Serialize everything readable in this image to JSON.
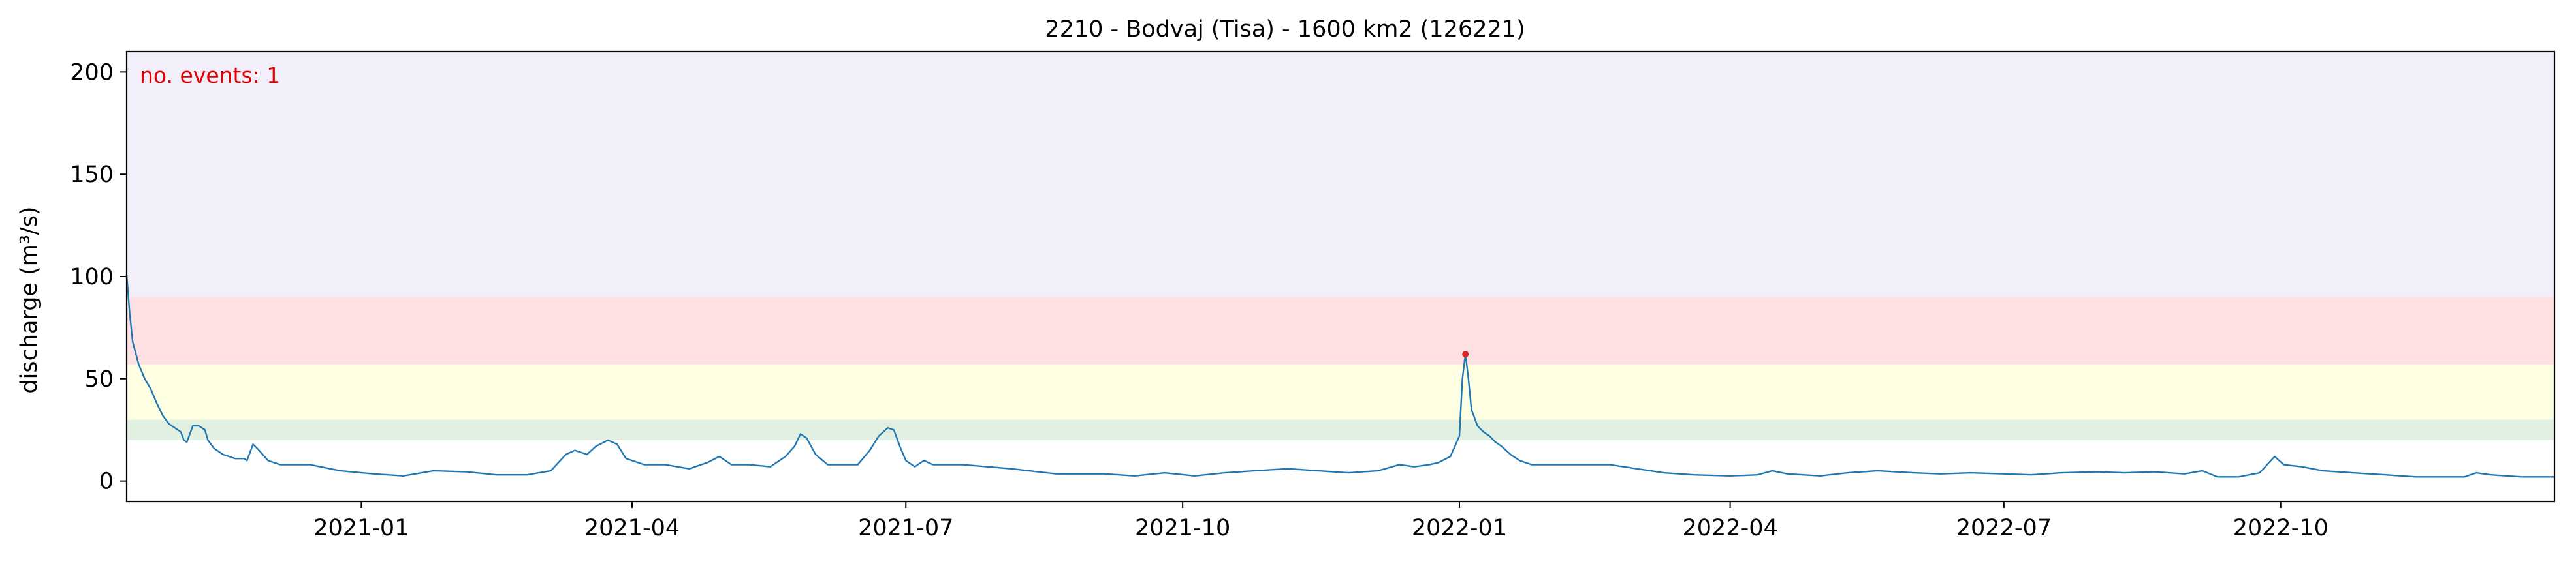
{
  "chart_data": {
    "type": "line",
    "title": "2210 - Bodvaj (Tisa) - 1600 km2 (126221)",
    "xlabel": "",
    "ylabel": "discharge (m³/s)",
    "annotation": "no. events: 1",
    "x_range": [
      "2020-10-15",
      "2022-12-31"
    ],
    "ylim": [
      -10,
      210
    ],
    "y_ticks": [
      0,
      50,
      100,
      150,
      200
    ],
    "x_ticks": [
      "2021-01-01",
      "2021-04-01",
      "2021-07-01",
      "2021-10-01",
      "2022-01-01",
      "2022-04-01",
      "2022-07-01",
      "2022-10-01"
    ],
    "x_tick_labels": [
      "2021-01",
      "2021-04",
      "2021-07",
      "2021-10",
      "2022-01",
      "2022-04",
      "2022-07",
      "2022-10"
    ],
    "grid": false,
    "threshold_bands": [
      {
        "from": 20,
        "to": 30,
        "color": "#e2f0e2"
      },
      {
        "from": 30,
        "to": 57,
        "color": "#fefee3"
      },
      {
        "from": 57,
        "to": 90,
        "color": "#ffe1e3"
      },
      {
        "from": 90,
        "to": 210,
        "color": "#f2eefa"
      }
    ],
    "series": [
      {
        "color": "#1f77b4",
        "points": [
          [
            "2020-10-15",
            101
          ],
          [
            "2020-10-16",
            82
          ],
          [
            "2020-10-17",
            68
          ],
          [
            "2020-10-19",
            57
          ],
          [
            "2020-10-21",
            50
          ],
          [
            "2020-10-23",
            45
          ],
          [
            "2020-10-25",
            38
          ],
          [
            "2020-10-27",
            32
          ],
          [
            "2020-10-29",
            28
          ],
          [
            "2020-10-31",
            26
          ],
          [
            "2020-11-02",
            24
          ],
          [
            "2020-11-03",
            20
          ],
          [
            "2020-11-04",
            19
          ],
          [
            "2020-11-06",
            27
          ],
          [
            "2020-11-08",
            27
          ],
          [
            "2020-11-10",
            25
          ],
          [
            "2020-11-11",
            20
          ],
          [
            "2020-11-13",
            16
          ],
          [
            "2020-11-16",
            13
          ],
          [
            "2020-11-20",
            11
          ],
          [
            "2020-11-23",
            11
          ],
          [
            "2020-11-24",
            10
          ],
          [
            "2020-11-26",
            18
          ],
          [
            "2020-11-28",
            15
          ],
          [
            "2020-12-01",
            10
          ],
          [
            "2020-12-05",
            8
          ],
          [
            "2020-12-15",
            8
          ],
          [
            "2020-12-25",
            5
          ],
          [
            "2021-01-05",
            3.5
          ],
          [
            "2021-01-15",
            2.5
          ],
          [
            "2021-01-25",
            5
          ],
          [
            "2021-02-05",
            4.5
          ],
          [
            "2021-02-15",
            3
          ],
          [
            "2021-02-25",
            3
          ],
          [
            "2021-03-05",
            5
          ],
          [
            "2021-03-10",
            13
          ],
          [
            "2021-03-13",
            15
          ],
          [
            "2021-03-17",
            13
          ],
          [
            "2021-03-20",
            17
          ],
          [
            "2021-03-24",
            20
          ],
          [
            "2021-03-27",
            18
          ],
          [
            "2021-03-30",
            11
          ],
          [
            "2021-04-05",
            8
          ],
          [
            "2021-04-12",
            8
          ],
          [
            "2021-04-20",
            6
          ],
          [
            "2021-04-26",
            9
          ],
          [
            "2021-04-30",
            12
          ],
          [
            "2021-05-04",
            8
          ],
          [
            "2021-05-10",
            8
          ],
          [
            "2021-05-17",
            7
          ],
          [
            "2021-05-22",
            12
          ],
          [
            "2021-05-25",
            17
          ],
          [
            "2021-05-27",
            23
          ],
          [
            "2021-05-29",
            21
          ],
          [
            "2021-06-01",
            13
          ],
          [
            "2021-06-05",
            8
          ],
          [
            "2021-06-10",
            8
          ],
          [
            "2021-06-15",
            8
          ],
          [
            "2021-06-19",
            15
          ],
          [
            "2021-06-22",
            22
          ],
          [
            "2021-06-25",
            26
          ],
          [
            "2021-06-27",
            25
          ],
          [
            "2021-06-29",
            17
          ],
          [
            "2021-07-01",
            10
          ],
          [
            "2021-07-04",
            7
          ],
          [
            "2021-07-07",
            10
          ],
          [
            "2021-07-10",
            8
          ],
          [
            "2021-07-20",
            8
          ],
          [
            "2021-08-05",
            6
          ],
          [
            "2021-08-20",
            3.5
          ],
          [
            "2021-09-05",
            3.5
          ],
          [
            "2021-09-15",
            2.5
          ],
          [
            "2021-09-25",
            4
          ],
          [
            "2021-10-05",
            2.5
          ],
          [
            "2021-10-15",
            4
          ],
          [
            "2021-10-25",
            5
          ],
          [
            "2021-11-05",
            6
          ],
          [
            "2021-11-15",
            5
          ],
          [
            "2021-11-25",
            4
          ],
          [
            "2021-12-05",
            5
          ],
          [
            "2021-12-12",
            8
          ],
          [
            "2021-12-17",
            7
          ],
          [
            "2021-12-22",
            8
          ],
          [
            "2021-12-25",
            9
          ],
          [
            "2021-12-29",
            12
          ],
          [
            "2022-01-01",
            22
          ],
          [
            "2022-01-02",
            50
          ],
          [
            "2022-01-03",
            62
          ],
          [
            "2022-01-04",
            50
          ],
          [
            "2022-01-05",
            35
          ],
          [
            "2022-01-07",
            27
          ],
          [
            "2022-01-09",
            24
          ],
          [
            "2022-01-11",
            22
          ],
          [
            "2022-01-13",
            19
          ],
          [
            "2022-01-15",
            17
          ],
          [
            "2022-01-18",
            13
          ],
          [
            "2022-01-21",
            10
          ],
          [
            "2022-01-25",
            8
          ],
          [
            "2022-02-05",
            8
          ],
          [
            "2022-02-20",
            8
          ],
          [
            "2022-03-01",
            6
          ],
          [
            "2022-03-10",
            4
          ],
          [
            "2022-03-20",
            3
          ],
          [
            "2022-04-01",
            2.5
          ],
          [
            "2022-04-10",
            3
          ],
          [
            "2022-04-15",
            5
          ],
          [
            "2022-04-20",
            3.5
          ],
          [
            "2022-05-01",
            2.5
          ],
          [
            "2022-05-10",
            4
          ],
          [
            "2022-05-20",
            5
          ],
          [
            "2022-06-01",
            4
          ],
          [
            "2022-06-10",
            3.5
          ],
          [
            "2022-06-20",
            4
          ],
          [
            "2022-07-01",
            3.5
          ],
          [
            "2022-07-10",
            3
          ],
          [
            "2022-07-20",
            4
          ],
          [
            "2022-08-01",
            4.5
          ],
          [
            "2022-08-10",
            4
          ],
          [
            "2022-08-20",
            4.5
          ],
          [
            "2022-08-30",
            3.5
          ],
          [
            "2022-09-05",
            5
          ],
          [
            "2022-09-10",
            2
          ],
          [
            "2022-09-17",
            2
          ],
          [
            "2022-09-24",
            4
          ],
          [
            "2022-09-29",
            12
          ],
          [
            "2022-10-02",
            8
          ],
          [
            "2022-10-08",
            7
          ],
          [
            "2022-10-15",
            5
          ],
          [
            "2022-10-25",
            4
          ],
          [
            "2022-11-05",
            3
          ],
          [
            "2022-11-15",
            2
          ],
          [
            "2022-11-25",
            2
          ],
          [
            "2022-12-01",
            2
          ],
          [
            "2022-12-05",
            4
          ],
          [
            "2022-12-10",
            3
          ],
          [
            "2022-12-20",
            2
          ],
          [
            "2022-12-31",
            2
          ]
        ]
      }
    ],
    "events": [
      {
        "date": "2022-01-03",
        "value": 62,
        "color": "#d62728"
      }
    ]
  }
}
